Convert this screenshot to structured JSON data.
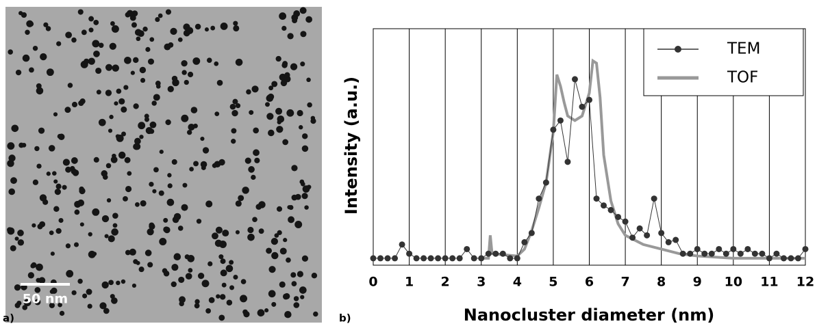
{
  "panel_a": {
    "label": "a)",
    "scale_bar": "50 nm"
  },
  "chart_data": {
    "type": "line",
    "panel_label": "b)",
    "x_label": "Nanocluster diameter (nm)",
    "y_label": "Intensity (a.u.)",
    "xlim": [
      0,
      12
    ],
    "xticks": [
      0,
      1,
      2,
      3,
      4,
      5,
      6,
      7,
      8,
      9,
      10,
      11,
      12
    ],
    "ylim": [
      -3,
      100
    ],
    "grid": true,
    "legend": "top-right",
    "series": [
      {
        "name": "TEM",
        "color": "#333333",
        "markers": true,
        "x": [
          0,
          0.2,
          0.4,
          0.6,
          0.8,
          1.0,
          1.2,
          1.4,
          1.6,
          1.8,
          2.0,
          2.2,
          2.4,
          2.6,
          2.8,
          3.0,
          3.2,
          3.4,
          3.6,
          3.8,
          4.0,
          4.2,
          4.4,
          4.6,
          4.8,
          5.0,
          5.2,
          5.4,
          5.6,
          5.8,
          6.0,
          6.2,
          6.4,
          6.6,
          6.8,
          7.0,
          7.2,
          7.4,
          7.6,
          7.8,
          8.0,
          8.2,
          8.4,
          8.6,
          8.8,
          9.0,
          9.2,
          9.4,
          9.6,
          9.8,
          10.0,
          10.2,
          10.4,
          10.6,
          10.8,
          11.0,
          11.2,
          11.4,
          11.6,
          11.8,
          12.0
        ],
        "values": [
          0,
          0,
          0,
          0,
          6,
          2,
          0,
          0,
          0,
          0,
          0,
          0,
          0,
          4,
          0,
          0,
          2,
          2,
          2,
          0,
          0,
          7,
          11,
          26,
          33,
          56,
          60,
          42,
          78,
          66,
          69,
          26,
          23,
          21,
          18,
          16,
          9,
          13,
          10,
          26,
          11,
          7,
          8,
          2,
          2,
          4,
          2,
          2,
          4,
          2,
          4,
          2,
          4,
          2,
          2,
          0,
          2,
          0,
          0,
          0,
          4
        ]
      },
      {
        "name": "TOF",
        "color": "#999999",
        "markers": false,
        "x": [
          3.0,
          3.2,
          3.25,
          3.3,
          4.0,
          4.2,
          4.4,
          4.6,
          4.8,
          5.0,
          5.1,
          5.2,
          5.3,
          5.4,
          5.6,
          5.8,
          6.0,
          6.1,
          6.2,
          6.3,
          6.4,
          6.6,
          6.8,
          7.0,
          7.5,
          8.0,
          8.5,
          9.0,
          10.0,
          11.0,
          12.0
        ],
        "values": [
          0,
          0,
          10,
          2,
          1,
          4,
          12,
          22,
          33,
          55,
          80,
          75,
          68,
          62,
          60,
          62,
          72,
          86,
          85,
          70,
          45,
          25,
          15,
          10,
          6,
          4,
          2,
          1,
          0,
          0,
          0
        ]
      }
    ]
  }
}
